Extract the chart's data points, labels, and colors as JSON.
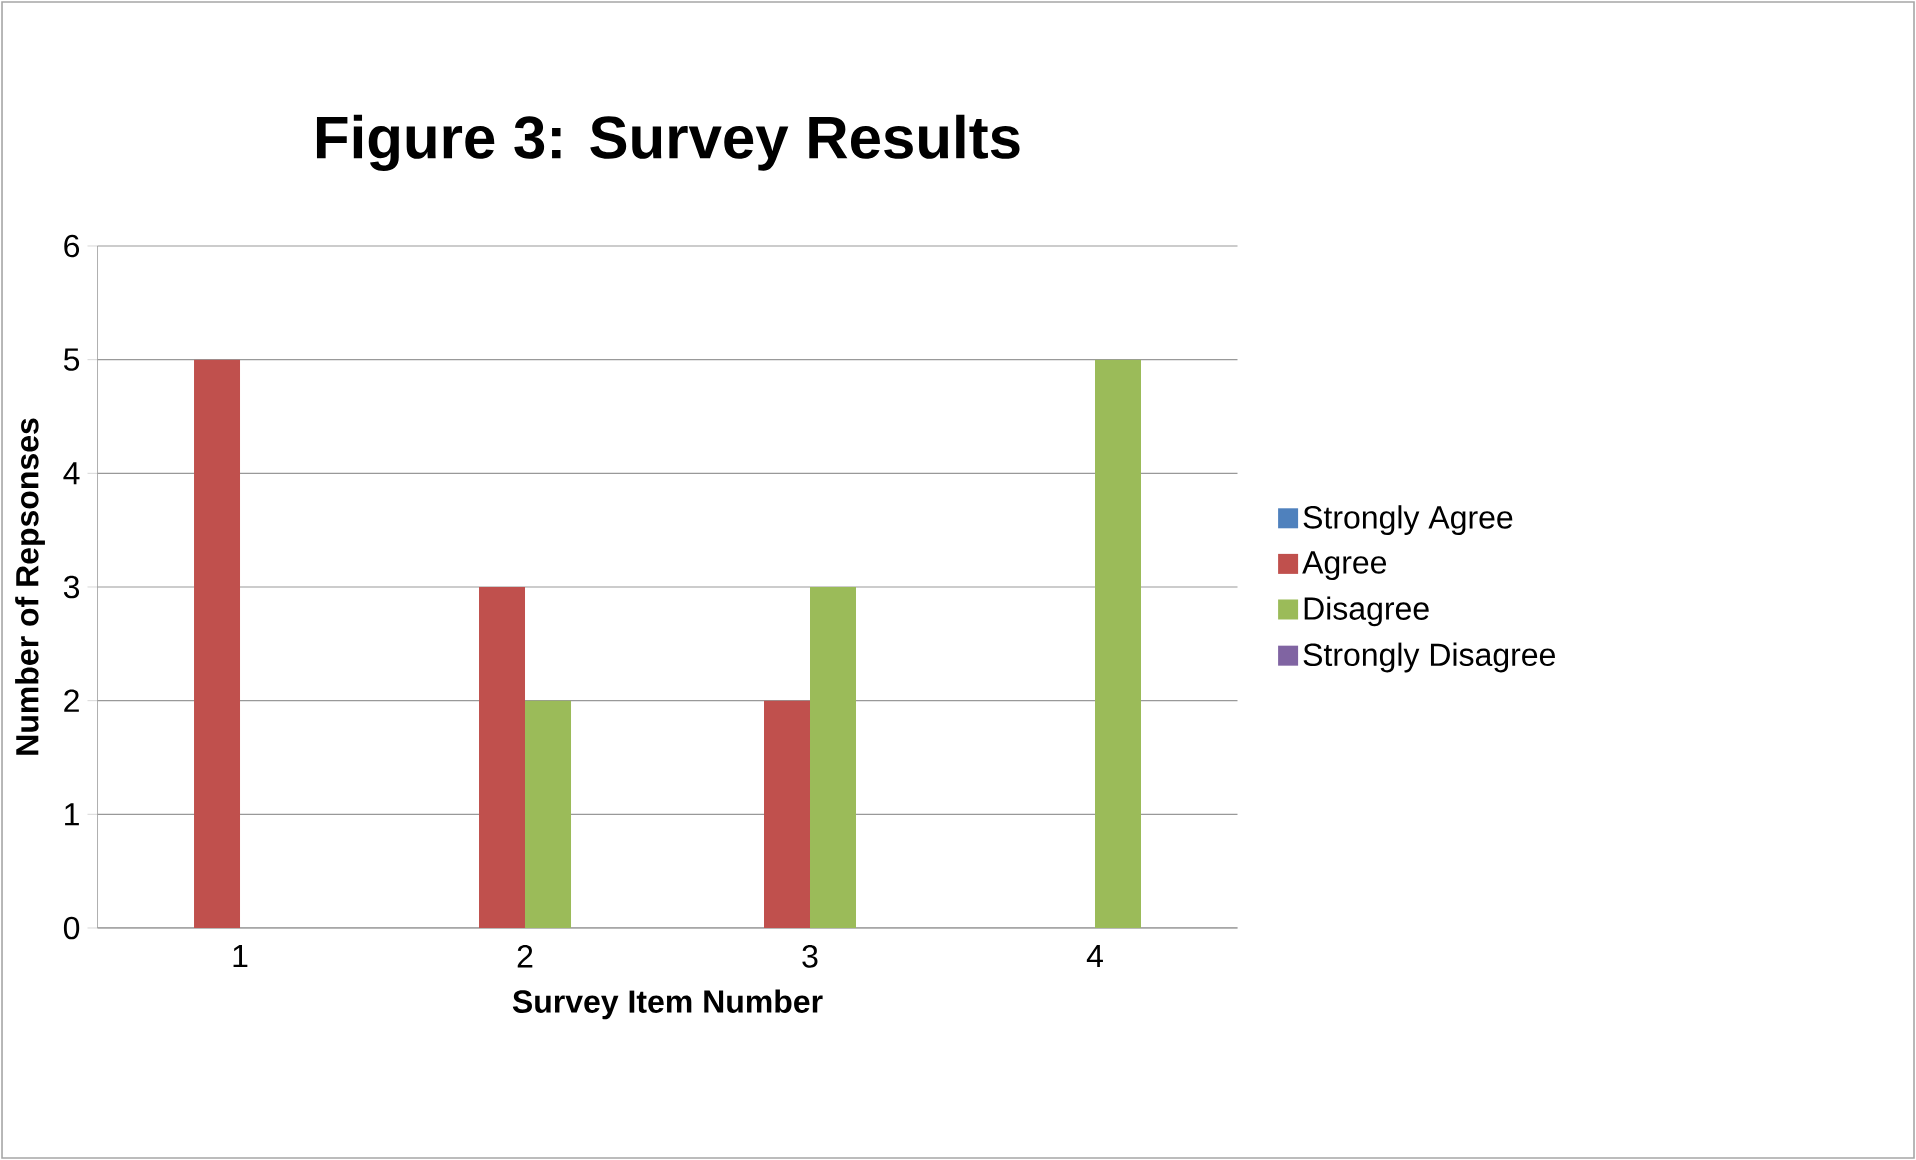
{
  "chart_data": {
    "type": "bar",
    "title": "Figure 3: Survey Results",
    "xlabel": "Survey Item Number",
    "ylabel": "Number of Repsonses",
    "categories": [
      "1",
      "2",
      "3",
      "4"
    ],
    "series": [
      {
        "name": "Strongly Agree",
        "color": "#4f81bd",
        "values": [
          0,
          0,
          0,
          0
        ]
      },
      {
        "name": "Agree",
        "color": "#c0504d",
        "values": [
          5,
          3,
          2,
          0
        ]
      },
      {
        "name": "Disagree",
        "color": "#9bbb59",
        "values": [
          0,
          2,
          3,
          5
        ]
      },
      {
        "name": "Strongly Disagree",
        "color": "#8064a2",
        "values": [
          0,
          0,
          0,
          0
        ]
      }
    ],
    "ylim": [
      0,
      6
    ],
    "yticks": [
      0,
      1,
      2,
      3,
      4,
      5,
      6
    ],
    "grid": "y",
    "legend": "right"
  }
}
